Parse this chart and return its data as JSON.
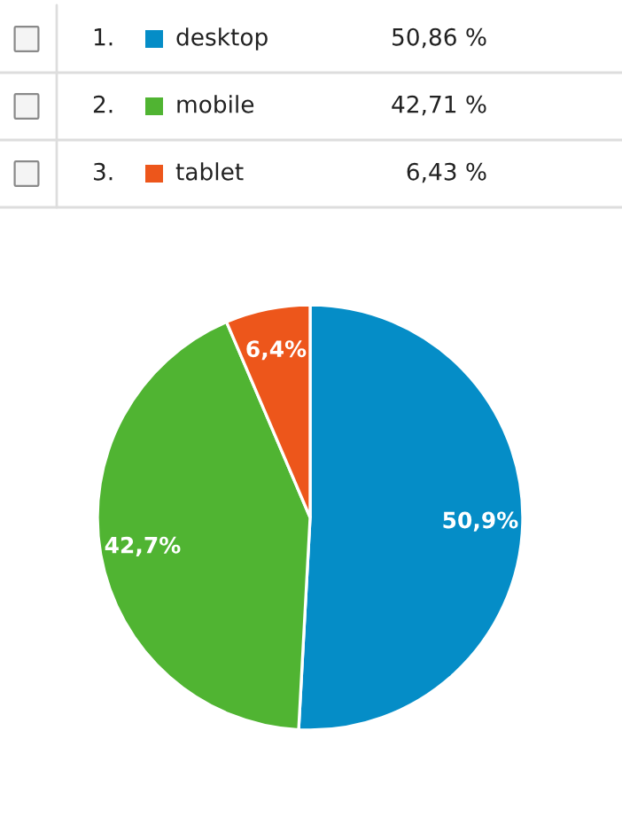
{
  "chart_data": {
    "type": "pie",
    "categories": [
      "desktop",
      "mobile",
      "tablet"
    ],
    "values": [
      50.86,
      42.71,
      6.43
    ],
    "colors": [
      "#058dc7",
      "#50b432",
      "#ed561b"
    ],
    "value_labels": [
      "50,9%",
      "42,7%",
      "6,4%"
    ],
    "annotations": [
      "1.",
      "2.",
      "3.",
      "50,86 %",
      "42,71 %",
      "6,43 %"
    ],
    "legend": "top"
  }
}
